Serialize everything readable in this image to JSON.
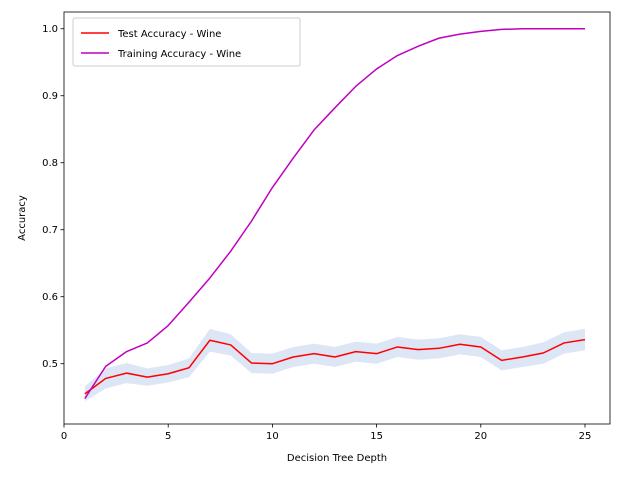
{
  "chart_data": {
    "type": "line",
    "xlabel": "Decision Tree Depth",
    "ylabel": "Accuracy",
    "xlim": [
      0,
      26.2
    ],
    "ylim": [
      0.41,
      1.025
    ],
    "xticks": [
      0,
      5,
      10,
      15,
      20,
      25
    ],
    "xtick_labels": [
      "0",
      "5",
      "10",
      "15",
      "20",
      "25"
    ],
    "yticks": [
      0.5,
      0.6,
      0.7,
      0.8,
      0.9,
      1.0
    ],
    "ytick_labels": [
      "0.5",
      "0.6",
      "0.7",
      "0.8",
      "0.9",
      "1.0"
    ],
    "grid": false,
    "legend_position": "top-left",
    "x": [
      1,
      2,
      3,
      4,
      5,
      6,
      7,
      8,
      9,
      10,
      11,
      12,
      13,
      14,
      15,
      16,
      17,
      18,
      19,
      20,
      21,
      22,
      23,
      24,
      25
    ],
    "series": [
      {
        "name": "Test Accuracy - Wine",
        "color": "#ff0000",
        "values": [
          0.455,
          0.478,
          0.486,
          0.48,
          0.485,
          0.494,
          0.535,
          0.528,
          0.501,
          0.5,
          0.51,
          0.515,
          0.51,
          0.518,
          0.515,
          0.525,
          0.521,
          0.523,
          0.529,
          0.525,
          0.505,
          0.51,
          0.516,
          0.531,
          0.536
        ],
        "band_lower": [
          0.444,
          0.463,
          0.471,
          0.467,
          0.472,
          0.48,
          0.518,
          0.512,
          0.486,
          0.485,
          0.495,
          0.5,
          0.495,
          0.503,
          0.5,
          0.51,
          0.506,
          0.508,
          0.514,
          0.51,
          0.49,
          0.495,
          0.5,
          0.515,
          0.52
        ],
        "band_upper": [
          0.466,
          0.493,
          0.501,
          0.493,
          0.498,
          0.508,
          0.552,
          0.544,
          0.516,
          0.515,
          0.525,
          0.53,
          0.525,
          0.533,
          0.53,
          0.54,
          0.536,
          0.538,
          0.544,
          0.54,
          0.52,
          0.525,
          0.532,
          0.547,
          0.552
        ],
        "band_color": "#dde6f5"
      },
      {
        "name": "Training Accuracy - Wine",
        "color": "#c000c0",
        "values": [
          0.448,
          0.496,
          0.518,
          0.531,
          0.557,
          0.592,
          0.628,
          0.668,
          0.713,
          0.763,
          0.807,
          0.849,
          0.882,
          0.914,
          0.94,
          0.96,
          0.974,
          0.986,
          0.992,
          0.996,
          0.999,
          1.0,
          1.0,
          1.0,
          1.0
        ]
      }
    ]
  }
}
